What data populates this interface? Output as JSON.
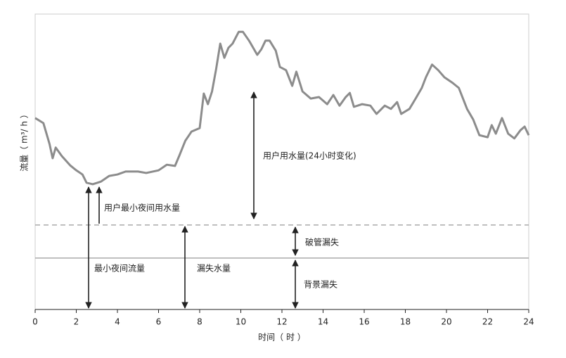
{
  "chart_data": {
    "type": "line",
    "x_label": "时间（ 时 ）",
    "y_label": "流量（ m³/ h ）",
    "x": [
      0,
      0.4,
      0.7,
      0.85,
      1.0,
      1.3,
      1.7,
      2.0,
      2.3,
      2.5,
      2.8,
      3.2,
      3.6,
      4.0,
      4.4,
      5.0,
      5.4,
      6.0,
      6.4,
      6.8,
      7.0,
      7.3,
      7.6,
      8.0,
      8.2,
      8.4,
      8.6,
      8.8,
      9.0,
      9.2,
      9.4,
      9.6,
      9.9,
      10.1,
      10.4,
      10.8,
      11.0,
      11.2,
      11.4,
      11.7,
      11.9,
      12.2,
      12.5,
      12.7,
      13.0,
      13.4,
      13.8,
      14.2,
      14.5,
      14.8,
      15.1,
      15.3,
      15.5,
      15.9,
      16.3,
      16.6,
      17.0,
      17.3,
      17.6,
      17.8,
      18.2,
      18.5,
      18.8,
      19.0,
      19.3,
      19.6,
      19.9,
      20.3,
      20.6,
      21.0,
      21.3,
      21.6,
      22.0,
      22.2,
      22.4,
      22.7,
      23.0,
      23.3,
      23.6,
      23.8,
      24.0
    ],
    "series": [
      {
        "color": "#8c8c8c",
        "values": [
          64.8,
          63.1,
          56.0,
          51.2,
          54.8,
          51.9,
          48.8,
          47.1,
          45.7,
          42.9,
          42.4,
          43.3,
          45.2,
          45.7,
          46.7,
          46.7,
          46.2,
          47.1,
          49.0,
          48.6,
          51.9,
          57.1,
          60.2,
          61.4,
          73.1,
          69.5,
          73.8,
          81.4,
          90.0,
          85.2,
          88.6,
          90.0,
          94.0,
          94.0,
          91.0,
          86.2,
          88.1,
          91.0,
          91.0,
          87.6,
          82.1,
          81.0,
          75.7,
          80.5,
          73.8,
          71.4,
          71.9,
          69.5,
          72.6,
          69.0,
          71.9,
          73.3,
          68.6,
          69.5,
          69.0,
          66.2,
          69.0,
          67.9,
          70.2,
          66.2,
          67.9,
          71.4,
          75.0,
          78.6,
          82.9,
          81.0,
          78.6,
          76.7,
          75.0,
          67.9,
          64.3,
          59.0,
          58.3,
          62.4,
          59.5,
          64.8,
          59.5,
          57.9,
          60.7,
          61.9,
          59.0
        ]
      }
    ],
    "xlim": [
      0,
      24
    ],
    "xticks": [
      0,
      2,
      4,
      6,
      8,
      10,
      12,
      14,
      16,
      18,
      20,
      22,
      24
    ],
    "ylim": [
      0,
      100
    ],
    "reference_lines": [
      {
        "value": 28.6,
        "style": "dashed"
      },
      {
        "value": 17.4,
        "style": "solid"
      }
    ],
    "annotations": [
      "用户用水量(24小时变化)",
      "用户最小夜间用水量",
      "破管漏失",
      "最小夜间流量",
      "漏失水量",
      "背景漏失"
    ]
  }
}
